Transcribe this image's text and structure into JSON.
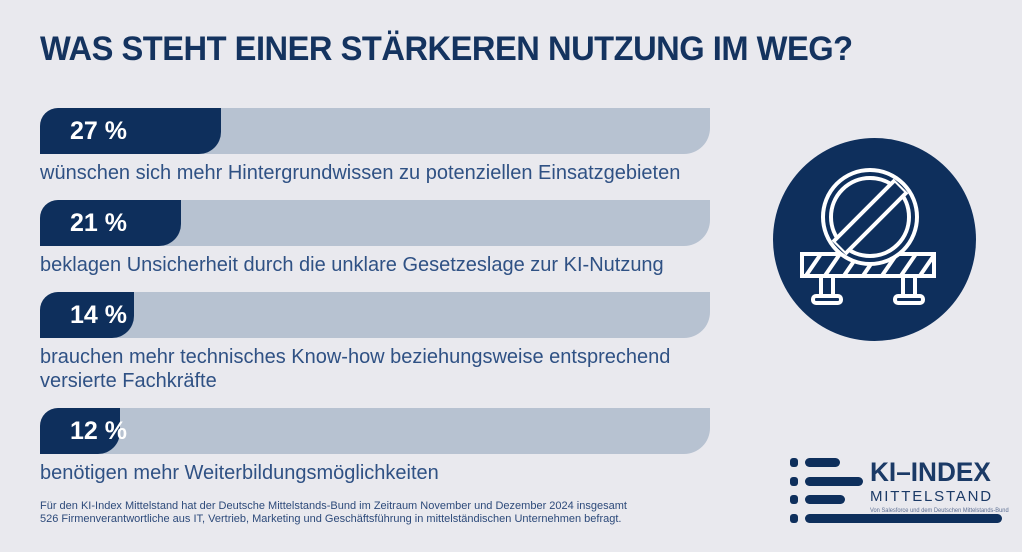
{
  "title": "WAS STEHT EINER STÄRKEREN NUTZUNG IM WEG?",
  "colors": {
    "navy": "#0e2f5c",
    "track": "#b7c2d1",
    "bg": "#e9e9ee",
    "text": "#2f5184",
    "title": "#14335f"
  },
  "chart_data": {
    "type": "bar",
    "orientation": "horizontal",
    "unit": "%",
    "xlim": [
      0,
      100
    ],
    "title": "WAS STEHT EINER STÄRKEREN NUTZUNG IM WEG?",
    "categories": [
      "wünschen sich mehr Hintergrundwissen zu potenziellen Einsatzgebieten",
      "beklagen Unsicherheit durch die unklare Gesetzeslage zur KI-Nutzung",
      "brauchen mehr technisches Know-how beziehungsweise entsprechend versierte Fachkräfte",
      "benötigen mehr Weiterbildungsmöglichkeiten"
    ],
    "values": [
      27,
      21,
      14,
      12
    ],
    "rows": [
      {
        "value": 27,
        "pct_label": "27 %",
        "desc": "wünschen sich mehr Hintergrundwissen zu potenziellen Einsatzgebieten"
      },
      {
        "value": 21,
        "pct_label": "21 %",
        "desc": "beklagen Unsicherheit durch die unklare Gesetzeslage zur KI-Nutzung"
      },
      {
        "value": 14,
        "pct_label": "14 %",
        "desc": "brauchen mehr technisches Know-how beziehungsweise entsprechend\nversierte Fachkräfte"
      },
      {
        "value": 12,
        "pct_label": "12 %",
        "desc": "benötigen mehr Weiterbildungsmöglichkeiten"
      }
    ]
  },
  "badge": {
    "icon": "no-entry-roadblock-icon"
  },
  "logo": {
    "title": "KI–INDEX",
    "subtitle": "MITTELSTAND",
    "tagline": "Von Salesforce und dem Deutschen Mittelstands-Bund"
  },
  "footnote": "Für den KI-Index Mittelstand hat der Deutsche Mittelstands-Bund im Zeitraum November und Dezember 2024 insgesamt\n526 Firmenverantwortliche aus IT, Vertrieb, Marketing und Geschäftsführung in mittelständischen Unternehmen befragt."
}
